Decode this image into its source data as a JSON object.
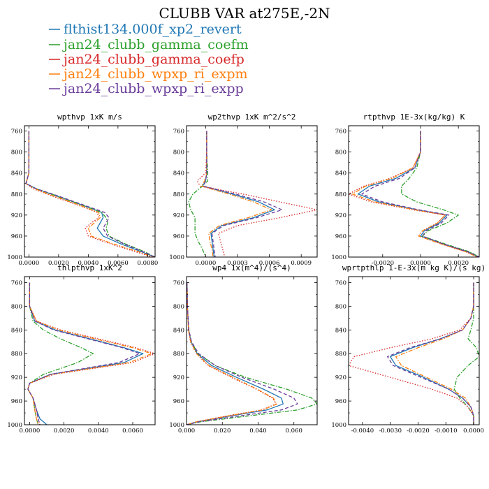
{
  "figure": {
    "title": "CLUBB VAR at275E,-2N",
    "legend": [
      {
        "name": "flthist134.000f_xp2_revert",
        "color": "#1f77b4",
        "dash": "solid"
      },
      {
        "name": "jan24_clubb_gamma_coefm",
        "color": "#2ca02c",
        "dash": "dashdot"
      },
      {
        "name": "jan24_clubb_gamma_coefp",
        "color": "#d62728",
        "dash": "dot"
      },
      {
        "name": "jan24_clubb_wpxp_ri_expm",
        "color": "#ff7f0e",
        "dash": "dashdot"
      },
      {
        "name": "jan24_clubb_wpxp_ri_expp",
        "color": "#6a3d9a",
        "dash": "dash"
      }
    ]
  },
  "chart_data": [
    {
      "type": "line",
      "title": "wpthvp  1xK m/s",
      "xlim": [
        -0.0003,
        0.0085
      ],
      "ylim": [
        750,
        1000
      ],
      "y_inverted": true,
      "xticks": [
        0,
        0.002,
        0.004,
        0.006,
        0.008
      ],
      "xtick_labels": [
        "0.0000",
        "0.0020",
        "0.0040",
        "0.0060",
        "0.0080"
      ],
      "yticks": [
        760,
        800,
        840,
        880,
        920,
        960,
        1000
      ],
      "y": [
        760,
        800,
        840,
        860,
        870,
        880,
        900,
        915,
        925,
        935,
        945,
        960,
        975,
        990,
        1000
      ],
      "series": [
        {
          "name": "flthist134.000f_xp2_revert",
          "values": [
            0,
            0,
            0,
            -0.0002,
            0.0005,
            0.0015,
            0.0035,
            0.0049,
            0.005,
            0.0048,
            0.0046,
            0.005,
            0.0062,
            0.0076,
            0.0085
          ]
        },
        {
          "name": "jan24_clubb_gamma_coefm",
          "values": [
            0,
            0,
            0,
            -0.0002,
            0.0005,
            0.0015,
            0.0035,
            0.0049,
            0.0052,
            0.0053,
            0.0052,
            0.0054,
            0.0065,
            0.0078,
            0.0085
          ]
        },
        {
          "name": "jan24_clubb_gamma_coefp",
          "values": [
            0,
            0,
            0,
            -0.0002,
            0.0003,
            0.0012,
            0.0032,
            0.0046,
            0.0047,
            0.0042,
            0.0038,
            0.004,
            0.0055,
            0.0072,
            0.0083
          ]
        },
        {
          "name": "jan24_clubb_wpxp_ri_expm",
          "values": [
            0,
            0,
            0,
            -0.0002,
            0.0004,
            0.0013,
            0.0033,
            0.0047,
            0.0048,
            0.0044,
            0.004,
            0.0042,
            0.0057,
            0.0074,
            0.0084
          ]
        },
        {
          "name": "jan24_clubb_wpxp_ri_expp",
          "values": [
            0,
            0,
            0,
            -0.0002,
            0.0005,
            0.0016,
            0.0036,
            0.0051,
            0.0054,
            0.0052,
            0.005,
            0.0053,
            0.0064,
            0.0077,
            0.0085
          ]
        }
      ]
    },
    {
      "type": "line",
      "title": "wp2thvp  1xK m^2/s^2",
      "xlim": [
        -0.00018,
        0.00105
      ],
      "ylim": [
        750,
        1000
      ],
      "y_inverted": true,
      "xticks": [
        0,
        0.0003,
        0.0006,
        0.0009
      ],
      "xtick_labels": [
        "0.0000",
        "0.0003",
        "0.0006",
        "0.0009"
      ],
      "yticks": [
        760,
        800,
        840,
        880,
        920,
        960,
        1000
      ],
      "y": [
        760,
        800,
        840,
        855,
        865,
        880,
        895,
        910,
        925,
        940,
        955,
        970,
        985,
        1000
      ],
      "series": [
        {
          "name": "flthist134.000f_xp2_revert",
          "values": [
            1e-05,
            1e-05,
            1e-05,
            0.0,
            -3e-05,
            0.00025,
            0.0005,
            0.00065,
            0.00045,
            0.00015,
            5e-05,
            6e-05,
            7e-05,
            8e-05
          ]
        },
        {
          "name": "jan24_clubb_gamma_coefm",
          "values": [
            1e-05,
            1e-05,
            2e-05,
            2e-05,
            -3e-05,
            -0.00012,
            -0.00016,
            -0.00014,
            -0.0001,
            -0.0001,
            -0.0001,
            -7e-05,
            -3e-05,
            0.0
          ]
        },
        {
          "name": "jan24_clubb_gamma_coefp",
          "values": [
            1e-05,
            1e-05,
            0.0,
            -8e-05,
            -5e-05,
            0.00035,
            0.0007,
            0.00105,
            0.0007,
            0.0003,
            0.00012,
            0.00014,
            0.00016,
            0.00018
          ]
        },
        {
          "name": "jan24_clubb_wpxp_ri_expm",
          "values": [
            1e-05,
            1e-05,
            1e-05,
            -1e-05,
            -4e-05,
            0.00022,
            0.00045,
            0.00062,
            0.0004,
            0.00013,
            3e-05,
            4e-05,
            6e-05,
            7e-05
          ]
        },
        {
          "name": "jan24_clubb_wpxp_ri_expp",
          "values": [
            1e-05,
            1e-05,
            1e-05,
            0.0,
            -2e-05,
            0.00028,
            0.00055,
            0.00072,
            0.00048,
            0.00017,
            6e-05,
            7e-05,
            8e-05,
            9e-05
          ]
        }
      ]
    },
    {
      "type": "line",
      "title": "rtpthvp  1E-3x(kg/kg) K",
      "xlim": [
        -0.0038,
        0.0031
      ],
      "ylim": [
        750,
        1000
      ],
      "y_inverted": true,
      "xticks": [
        -0.002,
        0,
        0.002
      ],
      "xtick_labels": [
        "-0.0020",
        "0.0000",
        "0.0020"
      ],
      "yticks": [
        760,
        800,
        840,
        880,
        920,
        960,
        1000
      ],
      "y": [
        760,
        800,
        830,
        850,
        865,
        880,
        895,
        910,
        920,
        935,
        950,
        960,
        975,
        990,
        1000
      ],
      "series": [
        {
          "name": "flthist134.000f_xp2_revert",
          "values": [
            0.0,
            0.0,
            -0.0003,
            -0.0013,
            -0.0027,
            -0.0033,
            -0.0022,
            -0.0002,
            0.0014,
            0.001,
            0.0002,
            0.0,
            0.0012,
            0.0025,
            0.0031
          ]
        },
        {
          "name": "jan24_clubb_gamma_coefm",
          "values": [
            0.0,
            0.0,
            -0.0002,
            -0.0006,
            -0.001,
            -0.001,
            -0.0002,
            0.0012,
            0.002,
            0.0014,
            0.0004,
            0.0001,
            0.0013,
            0.0026,
            0.0031
          ]
        },
        {
          "name": "jan24_clubb_gamma_coefp",
          "values": [
            0.0,
            0.0,
            -0.0004,
            -0.0016,
            -0.003,
            -0.0038,
            -0.0026,
            -0.0004,
            0.0013,
            0.0009,
            0.0001,
            -0.0001,
            0.0011,
            0.0024,
            0.003
          ]
        },
        {
          "name": "jan24_clubb_wpxp_ri_expm",
          "values": [
            0.0,
            0.0,
            -0.0004,
            -0.0015,
            -0.0029,
            -0.0036,
            -0.0024,
            -0.0003,
            0.0013,
            0.0009,
            0.0001,
            -0.0001,
            0.0011,
            0.0024,
            0.003
          ]
        },
        {
          "name": "jan24_clubb_wpxp_ri_expp",
          "values": [
            0.0,
            0.0,
            -0.0003,
            -0.0011,
            -0.0024,
            -0.0031,
            -0.002,
            -0.0001,
            0.0015,
            0.0011,
            0.0003,
            0.0001,
            0.0012,
            0.0025,
            0.0031
          ]
        }
      ]
    },
    {
      "type": "line",
      "title": "thlpthvp  1xK^2",
      "xlim": [
        -0.0003,
        0.0073
      ],
      "ylim": [
        750,
        1000
      ],
      "y_inverted": true,
      "xticks": [
        0,
        0.002,
        0.004,
        0.006
      ],
      "xtick_labels": [
        "0.0000",
        "0.0020",
        "0.0040",
        "0.0060"
      ],
      "yticks": [
        760,
        800,
        840,
        880,
        920,
        960,
        1000
      ],
      "y": [
        760,
        800,
        825,
        840,
        855,
        870,
        880,
        895,
        915,
        930,
        940,
        955,
        975,
        990,
        1000
      ],
      "series": [
        {
          "name": "flthist134.000f_xp2_revert",
          "values": [
            0.0,
            0.0,
            0.0003,
            0.0015,
            0.0035,
            0.0055,
            0.0066,
            0.0055,
            0.0012,
            0.0,
            -0.0001,
            0.0002,
            0.0004,
            0.0006,
            0.001
          ]
        },
        {
          "name": "jan24_clubb_gamma_coefm",
          "values": [
            0.0,
            0.0,
            0.0002,
            0.0008,
            0.0018,
            0.003,
            0.0037,
            0.0028,
            0.0008,
            0.0,
            -0.0001,
            0.0002,
            0.0003,
            0.0004,
            0.0005
          ]
        },
        {
          "name": "jan24_clubb_gamma_coefp",
          "values": [
            0.0,
            0.0,
            0.0004,
            0.0018,
            0.004,
            0.0062,
            0.0073,
            0.006,
            0.0014,
            0.0,
            -0.0001,
            0.0002,
            0.0004,
            0.0005,
            0.0006
          ]
        },
        {
          "name": "jan24_clubb_wpxp_ri_expm",
          "values": [
            0.0,
            0.0,
            0.0004,
            0.0017,
            0.0038,
            0.006,
            0.0071,
            0.0058,
            0.0013,
            0.0,
            -0.0001,
            0.0002,
            0.0003,
            0.0004,
            0.0005
          ]
        },
        {
          "name": "jan24_clubb_wpxp_ri_expp",
          "values": [
            0.0,
            0.0,
            0.0003,
            0.0014,
            0.0034,
            0.0054,
            0.0064,
            0.0052,
            0.0012,
            0.0,
            -0.0001,
            0.0002,
            0.0004,
            0.0005,
            0.0006
          ]
        }
      ]
    },
    {
      "type": "line",
      "title": "wp4  1x(m^4)/(s^4)",
      "xlim": [
        0,
        0.073
      ],
      "ylim": [
        750,
        1000
      ],
      "y_inverted": true,
      "xticks": [
        0,
        0.02,
        0.04,
        0.06
      ],
      "xtick_labels": [
        "0.000",
        "0.020",
        "0.040",
        "0.060"
      ],
      "yticks": [
        760,
        800,
        840,
        880,
        920,
        960,
        1000
      ],
      "y": [
        760,
        800,
        840,
        860,
        880,
        900,
        920,
        940,
        955,
        965,
        975,
        985,
        995,
        1000
      ],
      "series": [
        {
          "name": "flthist134.000f_xp2_revert",
          "values": [
            0.0003,
            0.0005,
            0.0012,
            0.0025,
            0.006,
            0.014,
            0.028,
            0.043,
            0.053,
            0.054,
            0.045,
            0.025,
            0.006,
            0.0
          ]
        },
        {
          "name": "jan24_clubb_gamma_coefm",
          "values": [
            0.0003,
            0.0005,
            0.0012,
            0.0026,
            0.0065,
            0.016,
            0.033,
            0.056,
            0.07,
            0.073,
            0.062,
            0.035,
            0.008,
            0.0
          ]
        },
        {
          "name": "jan24_clubb_gamma_coefp",
          "values": [
            0.0003,
            0.0005,
            0.0011,
            0.0022,
            0.0055,
            0.012,
            0.025,
            0.039,
            0.048,
            0.05,
            0.042,
            0.023,
            0.0055,
            0.0
          ]
        },
        {
          "name": "jan24_clubb_wpxp_ri_expm",
          "values": [
            0.0003,
            0.0005,
            0.0011,
            0.0023,
            0.0056,
            0.0125,
            0.026,
            0.0395,
            0.0485,
            0.0505,
            0.0425,
            0.0235,
            0.0055,
            0.0
          ]
        },
        {
          "name": "jan24_clubb_wpxp_ri_expp",
          "values": [
            0.0003,
            0.0005,
            0.0013,
            0.0028,
            0.0068,
            0.016,
            0.031,
            0.049,
            0.06,
            0.062,
            0.053,
            0.03,
            0.007,
            0.0
          ]
        }
      ]
    },
    {
      "type": "line",
      "title": "wprtpthlp  1-E-3x(m kg K)/(s kg)",
      "xlim": [
        -0.0045,
        0.0002
      ],
      "ylim": [
        750,
        1000
      ],
      "y_inverted": true,
      "xticks": [
        -0.004,
        -0.003,
        -0.002,
        -0.001,
        0
      ],
      "xtick_labels": [
        "-0.0040",
        "-0.0030",
        "-0.0020",
        "-0.0010",
        "0.0000"
      ],
      "yticks": [
        760,
        800,
        840,
        880,
        920,
        960,
        1000
      ],
      "y": [
        760,
        800,
        820,
        840,
        855,
        870,
        885,
        900,
        920,
        940,
        955,
        970,
        985,
        1000
      ],
      "series": [
        {
          "name": "flthist134.000f_xp2_revert",
          "values": [
            0.0,
            0.0,
            -0.0001,
            -0.0004,
            -0.0012,
            -0.0022,
            -0.003,
            -0.0028,
            -0.0018,
            -0.0009,
            -0.0004,
            -0.0001,
            0.0,
            0.0
          ]
        },
        {
          "name": "jan24_clubb_gamma_coefm",
          "values": [
            0.0,
            0.0,
            0.0,
            -0.0001,
            -0.0002,
            0.0001,
            0.0002,
            -0.0002,
            -0.0006,
            -0.0007,
            -0.0005,
            -0.0002,
            0.0,
            0.0
          ]
        },
        {
          "name": "jan24_clubb_gamma_coefp",
          "values": [
            0.0,
            0.0,
            -0.0001,
            -0.0005,
            -0.0015,
            -0.003,
            -0.0043,
            -0.0045,
            -0.003,
            -0.0015,
            -0.0006,
            -0.0002,
            0.0,
            0.0
          ]
        },
        {
          "name": "jan24_clubb_wpxp_ri_expm",
          "values": [
            0.0,
            0.0,
            -0.0001,
            -0.0004,
            -0.0011,
            -0.002,
            -0.0028,
            -0.0026,
            -0.0017,
            -0.0008,
            -0.0003,
            -0.0001,
            0.0,
            0.0
          ]
        },
        {
          "name": "jan24_clubb_wpxp_ri_expp",
          "values": [
            0.0,
            0.0,
            -0.0001,
            -0.0004,
            -0.0012,
            -0.0023,
            -0.0031,
            -0.0029,
            -0.0019,
            -0.0009,
            -0.0004,
            -0.0001,
            0.0,
            0.0
          ]
        }
      ]
    }
  ]
}
